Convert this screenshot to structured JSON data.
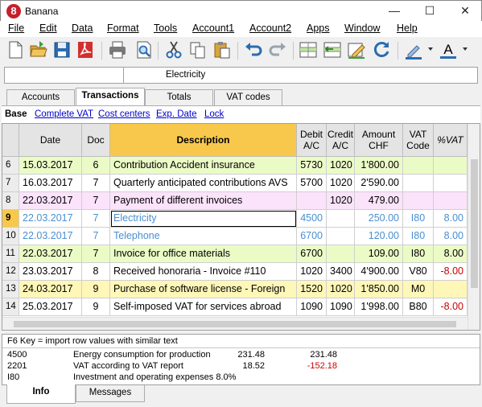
{
  "window": {
    "title": "Banana",
    "app_glyph": "8"
  },
  "menu": [
    "File",
    "Edit",
    "Data",
    "Format",
    "Tools",
    "Account1",
    "Account2",
    "Apps",
    "Window",
    "Help"
  ],
  "toolbar": {
    "icons": [
      "new-file-icon",
      "open-folder-icon",
      "save-icon",
      "pdf-icon",
      "print-icon",
      "print-preview-icon",
      "cut-icon",
      "copy-icon",
      "paste-icon",
      "undo-icon",
      "redo-icon",
      "add-row-icon",
      "delete-row-icon",
      "edit-row-icon",
      "recheck-icon",
      "highlight-pen-icon",
      "font-color-icon"
    ],
    "font_color_glyph": "A"
  },
  "cell_bar": {
    "reference": "",
    "value": "Electricity"
  },
  "tabs": [
    {
      "label": "Accounts",
      "active": false
    },
    {
      "label": "Transactions",
      "active": true
    },
    {
      "label": "Totals",
      "active": false
    },
    {
      "label": "VAT codes",
      "active": false
    }
  ],
  "views": [
    {
      "label": "Base",
      "active": true
    },
    {
      "label": "Complete VAT",
      "active": false
    },
    {
      "label": "Cost centers",
      "active": false
    },
    {
      "label": "Exp. Date",
      "active": false
    },
    {
      "label": "Lock",
      "active": false
    }
  ],
  "columns": [
    {
      "key": "rownum",
      "label": ""
    },
    {
      "key": "date",
      "label": "Date"
    },
    {
      "key": "doc",
      "label": "Doc"
    },
    {
      "key": "desc",
      "label": "Description"
    },
    {
      "key": "debit",
      "label": "Debit A/C"
    },
    {
      "key": "credit",
      "label": "Credit A/C"
    },
    {
      "key": "amount",
      "label": "Amount CHF"
    },
    {
      "key": "vatcode",
      "label": "VAT Code"
    },
    {
      "key": "pctvat",
      "label": "%VAT"
    }
  ],
  "rows": [
    {
      "rownum": "6",
      "date": "15.03.2017",
      "doc": "6",
      "desc": "Contribution Accident insurance",
      "debit": "5730",
      "credit": "1020",
      "amount": "1'800.00",
      "vatcode": "",
      "pctvat": "",
      "bg": "#ebfbc6",
      "fg": "#000000"
    },
    {
      "rownum": "7",
      "date": "16.03.2017",
      "doc": "7",
      "desc": "Quarterly anticipated contributions AVS",
      "debit": "5700",
      "credit": "1020",
      "amount": "2'590.00",
      "vatcode": "",
      "pctvat": "",
      "bg": "#ffffff",
      "fg": "#000000"
    },
    {
      "rownum": "8",
      "date": "22.03.2017",
      "doc": "7",
      "desc": "Payment of different invoices",
      "debit": "",
      "credit": "1020",
      "amount": "479.00",
      "vatcode": "",
      "pctvat": "",
      "bg": "#fbe3fb",
      "fg": "#000000"
    },
    {
      "rownum": "9",
      "date": "22.03.2017",
      "doc": "7",
      "desc": "Electricity",
      "debit": "4500",
      "credit": "",
      "amount": "250.00",
      "vatcode": "I80",
      "pctvat": "8.00",
      "bg": "#ffffff",
      "fg": "#4a8fd0",
      "selected": true
    },
    {
      "rownum": "10",
      "date": "22.03.2017",
      "doc": "7",
      "desc": "Telephone",
      "debit": "6700",
      "credit": "",
      "amount": "120.00",
      "vatcode": "I80",
      "pctvat": "8.00",
      "bg": "#ffffff",
      "fg": "#4a8fd0"
    },
    {
      "rownum": "11",
      "date": "22.03.2017",
      "doc": "7",
      "desc": "Invoice for office materials",
      "debit": "6700",
      "credit": "",
      "amount": "109.00",
      "vatcode": "I80",
      "pctvat": "8.00",
      "bg": "#ebfbc6",
      "fg": "#000000"
    },
    {
      "rownum": "12",
      "date": "23.03.2017",
      "doc": "8",
      "desc": "Received honoraria - Invoice #110",
      "debit": "1020",
      "credit": "3400",
      "amount": "4'900.00",
      "vatcode": "V80",
      "pctvat": "-8.00",
      "bg": "#ffffff",
      "fg": "#000000",
      "pct_red": true
    },
    {
      "rownum": "13",
      "date": "24.03.2017",
      "doc": "9",
      "desc": "Purchase of software license - Foreign",
      "debit": "1520",
      "credit": "1020",
      "amount": "1'850.00",
      "vatcode": "M0",
      "pctvat": "",
      "bg": "#fff7b8",
      "fg": "#000000"
    },
    {
      "rownum": "14",
      "date": "25.03.2017",
      "doc": "9",
      "desc": "Self-imposed VAT for services abroad",
      "debit": "1090",
      "credit": "1090",
      "amount": "1'998.00",
      "vatcode": "B80",
      "pctvat": "-8.00",
      "bg": "#ffffff",
      "fg": "#000000",
      "pct_red": true
    }
  ],
  "info": {
    "hint": "F6 Key = import row values with similar text",
    "lines": [
      {
        "code": "4500",
        "text": "Energy consumption for production",
        "v1": "231.48",
        "v2": "231.48",
        "v2_red": false
      },
      {
        "code": "2201",
        "text": "VAT according to VAT report",
        "v1": "18.52",
        "v2": "-152.18",
        "v2_red": true
      },
      {
        "code": "I80",
        "text": "Investment and operating expenses 8.0%",
        "v1": "",
        "v2": "",
        "v2_red": false
      }
    ]
  },
  "bottom_tabs": [
    {
      "label": "Info",
      "active": true
    },
    {
      "label": "Messages",
      "active": false
    }
  ],
  "colors": {
    "desc_header": "#f7c84b",
    "selected_row_text": "#4a8fd0",
    "negative": "#cc0000",
    "link": "#0000cc"
  }
}
